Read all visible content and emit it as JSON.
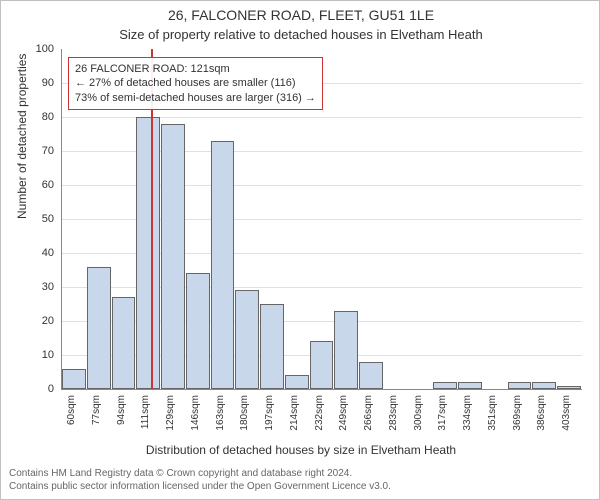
{
  "title_main": "26, FALCONER ROAD, FLEET, GU51 1LE",
  "title_sub": "Size of property relative to detached houses in Elvetham Heath",
  "ylabel": "Number of detached properties",
  "xlabel": "Distribution of detached houses by size in Elvetham Heath",
  "footer_line1": "Contains HM Land Registry data © Crown copyright and database right 2024.",
  "footer_line2": "Contains public sector information licensed under the Open Government Licence v3.0.",
  "chart": {
    "type": "histogram",
    "ylim": [
      0,
      100
    ],
    "ytick_step": 10,
    "bar_fill": "#c8d7ea",
    "bar_border": "#666666",
    "grid_color": "#e0e0e0",
    "background": "#ffffff",
    "marker_color": "#cc3333",
    "marker_value": 121,
    "x_start": 60,
    "x_step": 17,
    "x_unit": "sqm",
    "categories": [
      "60sqm",
      "77sqm",
      "94sqm",
      "111sqm",
      "129sqm",
      "146sqm",
      "163sqm",
      "180sqm",
      "197sqm",
      "214sqm",
      "232sqm",
      "249sqm",
      "266sqm",
      "283sqm",
      "300sqm",
      "317sqm",
      "334sqm",
      "351sqm",
      "369sqm",
      "386sqm",
      "403sqm"
    ],
    "values": [
      6,
      36,
      27,
      80,
      78,
      34,
      73,
      29,
      25,
      4,
      14,
      23,
      8,
      0,
      0,
      2,
      2,
      0,
      2,
      2,
      1
    ]
  },
  "annotation": {
    "line1": "26 FALCONER ROAD: 121sqm",
    "line2": "← 27% of detached houses are smaller (116)",
    "line3": "73% of semi-detached houses are larger (316) →"
  },
  "fonts": {
    "title_main_size": 14,
    "title_sub_size": 13,
    "label_size": 12,
    "tick_size": 11,
    "xtick_size": 10,
    "footer_size": 10,
    "annotation_size": 11
  }
}
